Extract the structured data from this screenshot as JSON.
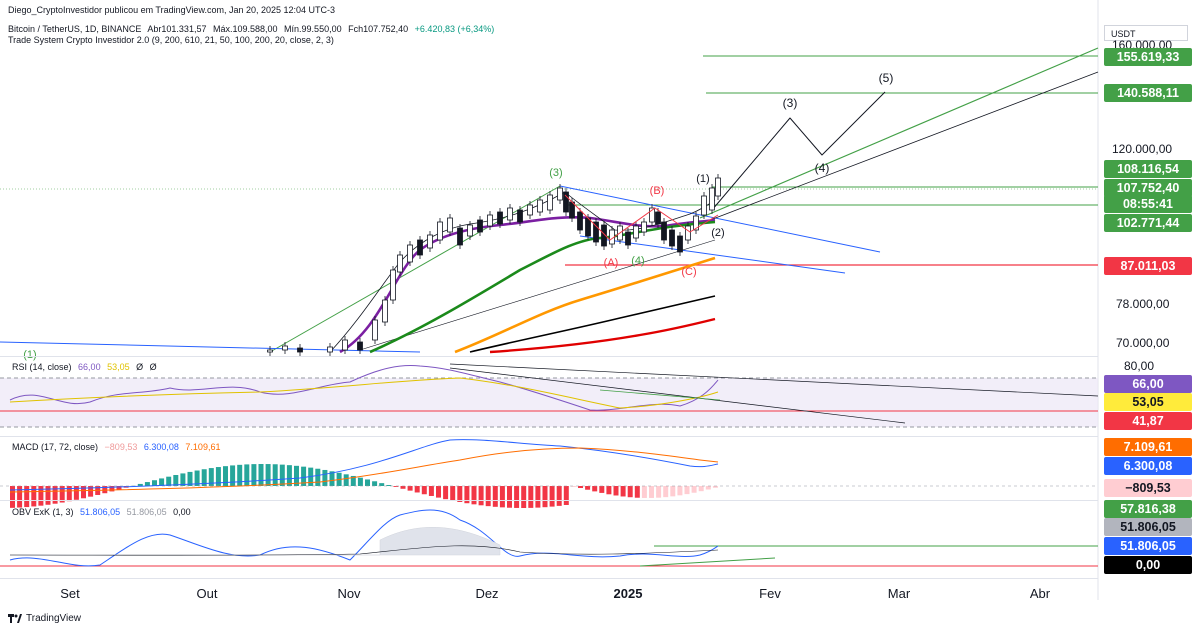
{
  "header": {
    "published": "Diego_CryptoInvestidor publicou em TradingView.com, Jan 20, 2025 12:04 UTC-3",
    "symbol": "Bitcoin / TetherUS, 1D, BINANCE",
    "open": "Abr101.331,57",
    "high": "Máx.109.588,00",
    "low": "Mín.99.550,00",
    "close": "Fch107.752,40",
    "change": "+6.420,83 (+6,34%)",
    "indicator": "Trade System Crypto Investidor 2.0 (9, 200, 610, 21, 50, 100, 200, 20, close, 2, 3)"
  },
  "currency": "USDT",
  "price_axis": {
    "ticks": [
      "160.000,00",
      "120.000,00",
      "78.000,00",
      "70.000,00"
    ],
    "badges": [
      {
        "label": "155.619,33",
        "color": "#43a047"
      },
      {
        "label": "140.588,11",
        "color": "#43a047"
      },
      {
        "label": "108.116,54",
        "color": "#43a047"
      },
      {
        "label": "107.752,40",
        "color": "#43a047"
      },
      {
        "label": "08:55:41",
        "color": "#43a047"
      },
      {
        "label": "102.771,44",
        "color": "#43a047"
      },
      {
        "label": "87.011,03",
        "color": "#f23645"
      }
    ]
  },
  "wave_labels": {
    "w3_top": "(3)",
    "wB": "(B)",
    "w1": "(1)",
    "w2": "(2)",
    "wA": "(A)",
    "w4_low": "(4)",
    "wC": "(C)",
    "proj3": "(3)",
    "proj4": "(4)",
    "proj5": "(5)",
    "w1_left": "(1)"
  },
  "rsi": {
    "title": "RSI (14, close)",
    "v1": "66,00",
    "v2": "53,05",
    "v3": "Ø",
    "v4": "Ø",
    "axis_top": "80,00",
    "badges": [
      {
        "label": "66,00",
        "color": "#7e57c2",
        "text": "#ffffff"
      },
      {
        "label": "53,05",
        "color": "#ffeb3b",
        "text": "#131722"
      },
      {
        "label": "41,87",
        "color": "#f23645",
        "text": "#ffffff"
      }
    ]
  },
  "macd": {
    "title": "MACD (17, 72, close)",
    "hist": "−809,53",
    "macd_val": "6.300,08",
    "signal_val": "7.109,61",
    "badges": [
      {
        "label": "7.109,61",
        "color": "#ff6d00",
        "text": "#ffffff"
      },
      {
        "label": "6.300,08",
        "color": "#2962ff",
        "text": "#ffffff"
      },
      {
        "label": "−809,53",
        "color": "#ffcdd2",
        "text": "#131722"
      }
    ]
  },
  "obv": {
    "title": "OBV ExK (1, 3)",
    "v1": "51.806,05",
    "v2": "51.806,05",
    "v3": "0,00",
    "badges": [
      {
        "label": "57.816,38",
        "color": "#43a047",
        "text": "#ffffff"
      },
      {
        "label": "51.806,05",
        "color": "#b2b5be",
        "text": "#131722"
      },
      {
        "label": "51.806,05",
        "color": "#2962ff",
        "text": "#ffffff"
      },
      {
        "label": "0,00",
        "color": "#000000",
        "text": "#ffffff"
      }
    ]
  },
  "time_axis": [
    "Set",
    "Out",
    "Nov",
    "Dez",
    "2025",
    "Fev",
    "Mar",
    "Abr"
  ],
  "footer": "TradingView",
  "colors": {
    "green": "#43a047",
    "red": "#f23645",
    "purple": "#7b1fa2",
    "orange": "#ff9800",
    "blue": "#2962ff",
    "darkgreen": "#1b8a1b"
  }
}
